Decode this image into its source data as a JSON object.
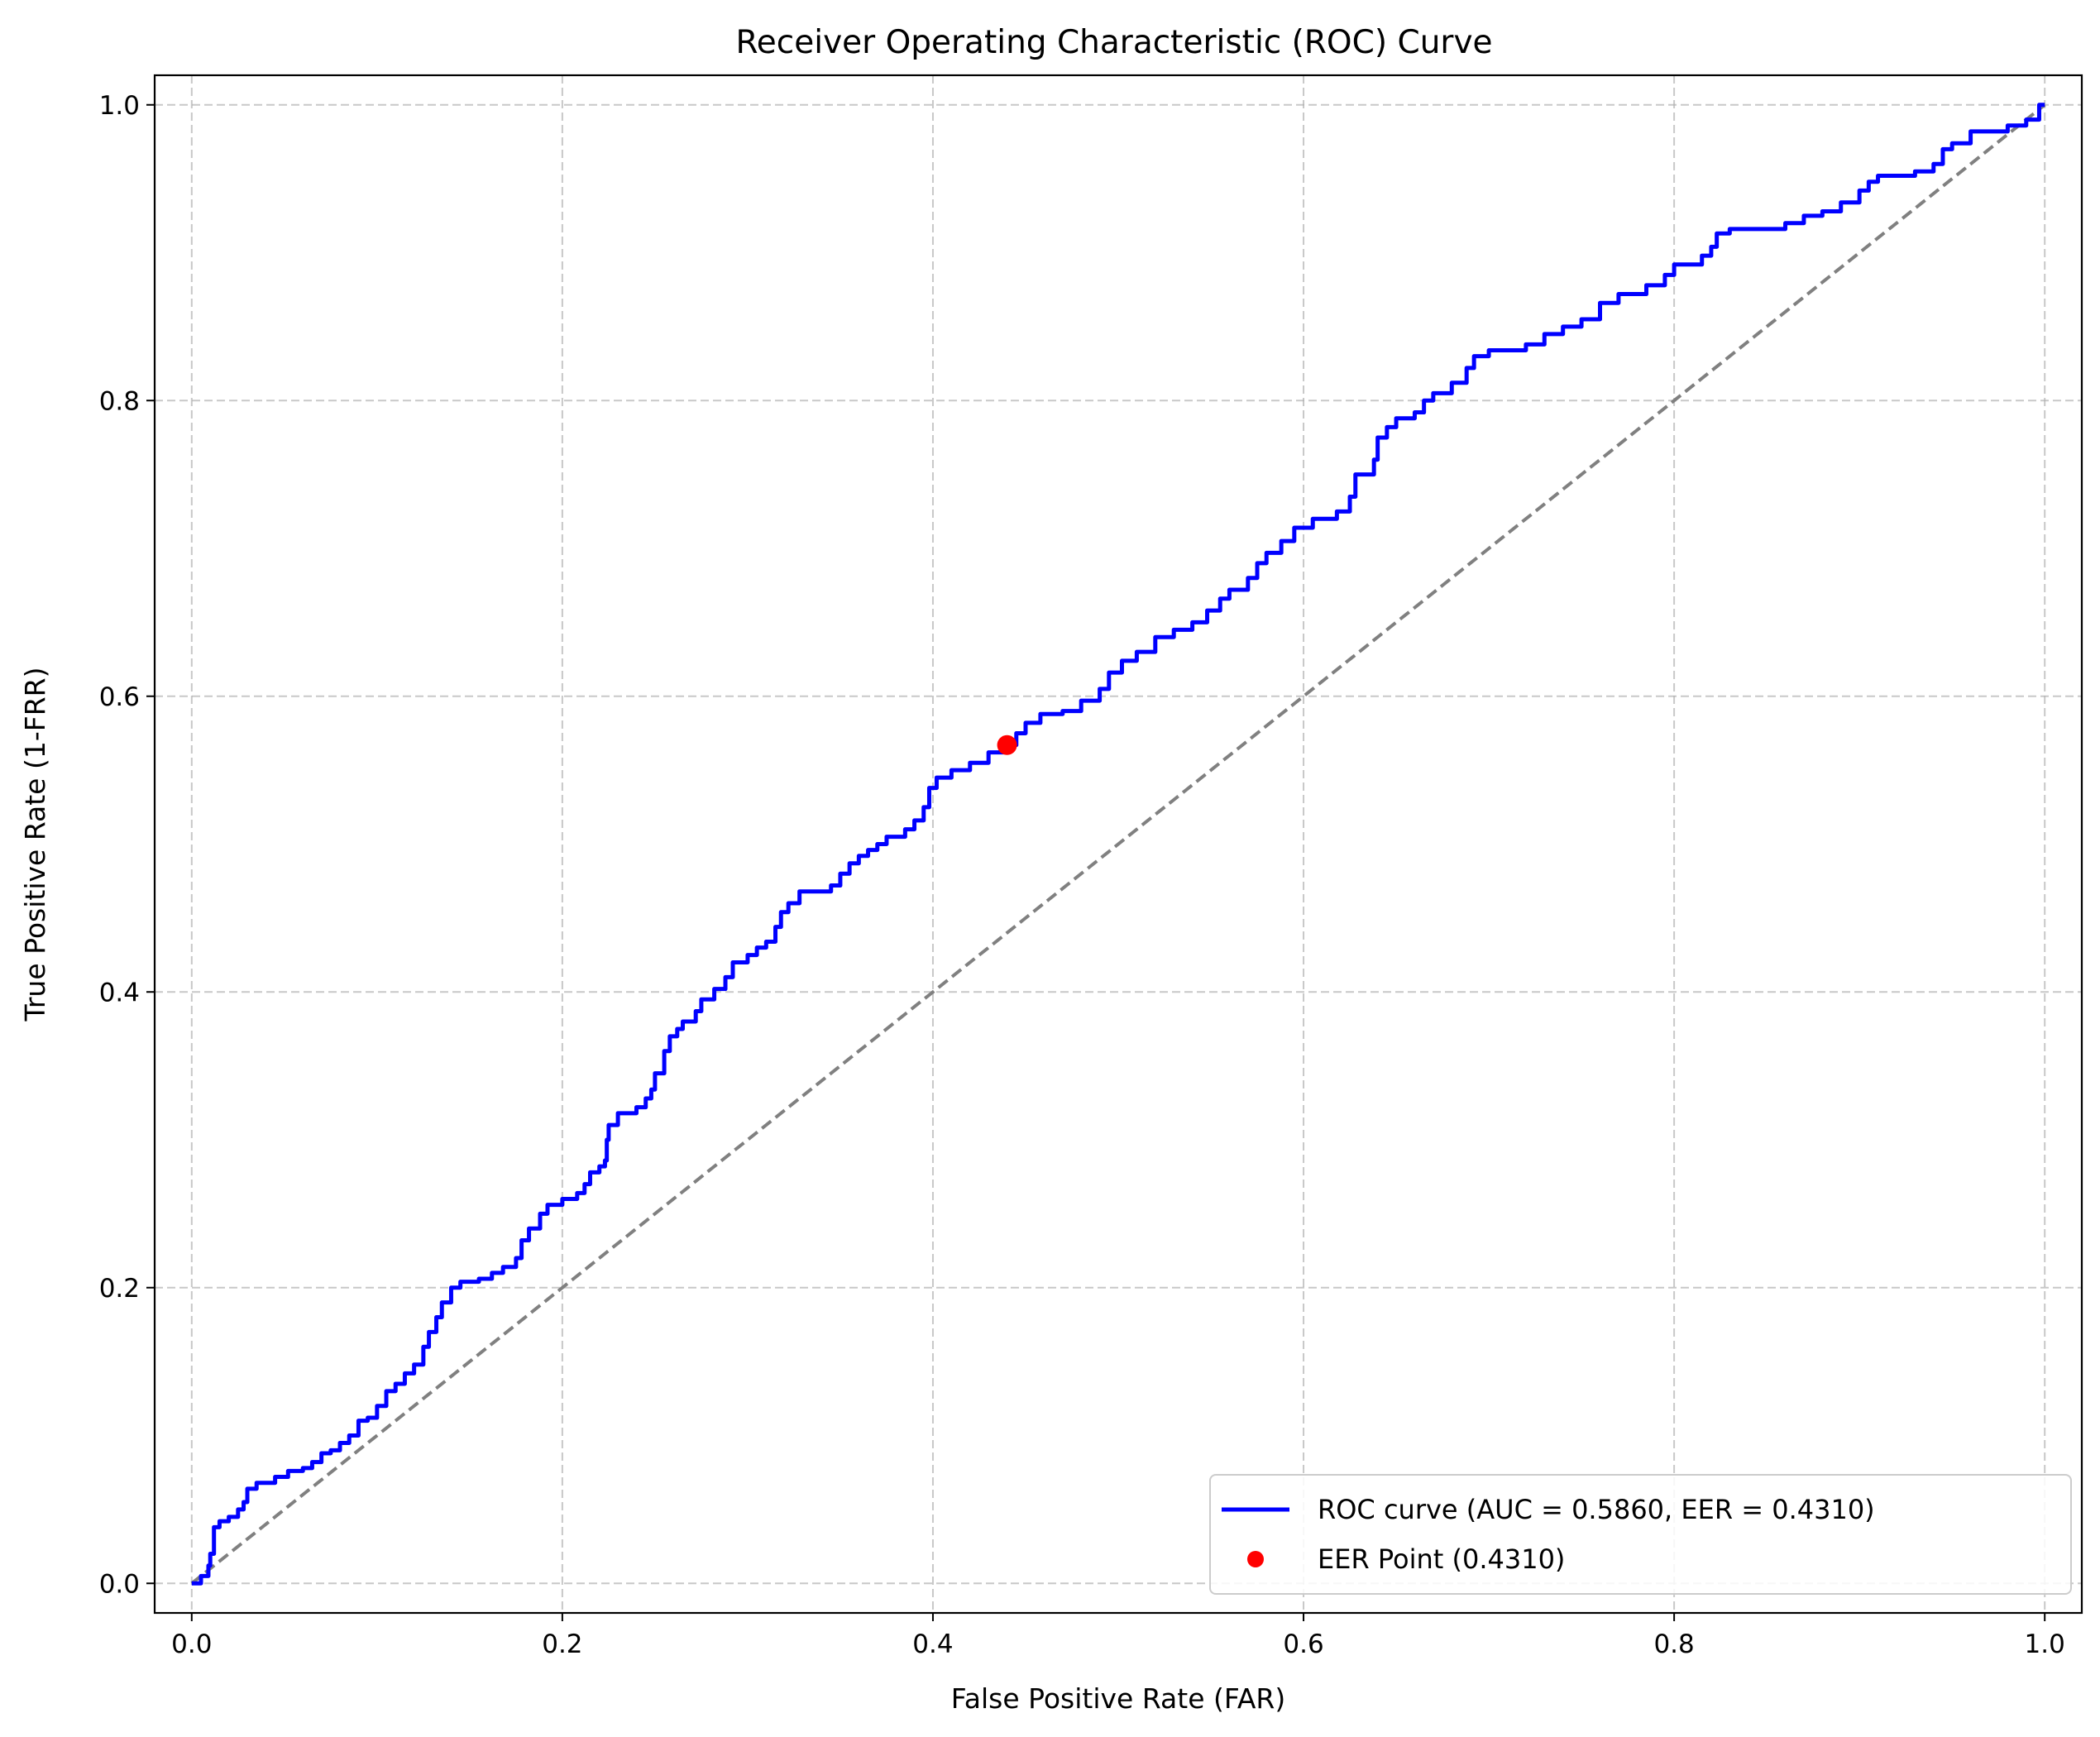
{
  "chart_data": {
    "type": "line",
    "title": "Receiver Operating Characteristic (ROC) Curve",
    "xlabel": "False Positive Rate (FAR)",
    "ylabel": "True Positive Rate (1-FRR)",
    "xlim": [
      -0.02,
      1.02
    ],
    "ylim": [
      -0.02,
      1.02
    ],
    "xticks": [
      0.0,
      0.2,
      0.4,
      0.6,
      0.8,
      1.0
    ],
    "yticks": [
      0.0,
      0.2,
      0.4,
      0.6,
      0.8,
      1.0
    ],
    "xtick_labels": [
      "0.0",
      "0.2",
      "0.4",
      "0.6",
      "0.8",
      "1.0"
    ],
    "ytick_labels": [
      "0.0",
      "0.2",
      "0.4",
      "0.6",
      "0.8",
      "1.0"
    ],
    "grid": true,
    "legend_position": "lower-right",
    "series": [
      {
        "name": "ROC curve (AUC = 0.5860, EER = 0.4310)",
        "color": "#0000ff",
        "style": "solid",
        "points": [
          [
            0.0,
            0.0
          ],
          [
            0.005,
            0.005
          ],
          [
            0.009,
            0.012
          ],
          [
            0.01,
            0.02
          ],
          [
            0.012,
            0.038
          ],
          [
            0.015,
            0.042
          ],
          [
            0.02,
            0.045
          ],
          [
            0.025,
            0.05
          ],
          [
            0.028,
            0.055
          ],
          [
            0.03,
            0.064
          ],
          [
            0.035,
            0.068
          ],
          [
            0.045,
            0.072
          ],
          [
            0.052,
            0.076
          ],
          [
            0.06,
            0.078
          ],
          [
            0.065,
            0.082
          ],
          [
            0.07,
            0.088
          ],
          [
            0.075,
            0.09
          ],
          [
            0.08,
            0.095
          ],
          [
            0.085,
            0.1
          ],
          [
            0.09,
            0.11
          ],
          [
            0.095,
            0.112
          ],
          [
            0.1,
            0.12
          ],
          [
            0.105,
            0.13
          ],
          [
            0.11,
            0.135
          ],
          [
            0.115,
            0.142
          ],
          [
            0.12,
            0.148
          ],
          [
            0.125,
            0.16
          ],
          [
            0.128,
            0.17
          ],
          [
            0.132,
            0.18
          ],
          [
            0.135,
            0.19
          ],
          [
            0.14,
            0.2
          ],
          [
            0.145,
            0.204
          ],
          [
            0.155,
            0.206
          ],
          [
            0.162,
            0.21
          ],
          [
            0.168,
            0.214
          ],
          [
            0.175,
            0.22
          ],
          [
            0.178,
            0.232
          ],
          [
            0.182,
            0.24
          ],
          [
            0.188,
            0.25
          ],
          [
            0.192,
            0.256
          ],
          [
            0.2,
            0.26
          ],
          [
            0.208,
            0.264
          ],
          [
            0.212,
            0.27
          ],
          [
            0.215,
            0.278
          ],
          [
            0.22,
            0.282
          ],
          [
            0.223,
            0.286
          ],
          [
            0.224,
            0.3
          ],
          [
            0.225,
            0.31
          ],
          [
            0.23,
            0.318
          ],
          [
            0.24,
            0.322
          ],
          [
            0.245,
            0.328
          ],
          [
            0.248,
            0.334
          ],
          [
            0.25,
            0.345
          ],
          [
            0.255,
            0.36
          ],
          [
            0.258,
            0.37
          ],
          [
            0.262,
            0.375
          ],
          [
            0.265,
            0.38
          ],
          [
            0.272,
            0.387
          ],
          [
            0.275,
            0.395
          ],
          [
            0.282,
            0.402
          ],
          [
            0.288,
            0.41
          ],
          [
            0.292,
            0.42
          ],
          [
            0.3,
            0.425
          ],
          [
            0.305,
            0.43
          ],
          [
            0.31,
            0.434
          ],
          [
            0.315,
            0.444
          ],
          [
            0.318,
            0.454
          ],
          [
            0.322,
            0.46
          ],
          [
            0.328,
            0.468
          ],
          [
            0.345,
            0.472
          ],
          [
            0.35,
            0.48
          ],
          [
            0.355,
            0.487
          ],
          [
            0.36,
            0.492
          ],
          [
            0.365,
            0.496
          ],
          [
            0.37,
            0.5
          ],
          [
            0.375,
            0.505
          ],
          [
            0.385,
            0.51
          ],
          [
            0.39,
            0.516
          ],
          [
            0.395,
            0.525
          ],
          [
            0.398,
            0.538
          ],
          [
            0.402,
            0.545
          ],
          [
            0.41,
            0.55
          ],
          [
            0.42,
            0.555
          ],
          [
            0.43,
            0.562
          ],
          [
            0.44,
            0.567
          ],
          [
            0.445,
            0.575
          ],
          [
            0.45,
            0.582
          ],
          [
            0.458,
            0.588
          ],
          [
            0.47,
            0.59
          ],
          [
            0.48,
            0.597
          ],
          [
            0.49,
            0.605
          ],
          [
            0.495,
            0.616
          ],
          [
            0.502,
            0.624
          ],
          [
            0.51,
            0.63
          ],
          [
            0.52,
            0.64
          ],
          [
            0.53,
            0.645
          ],
          [
            0.54,
            0.65
          ],
          [
            0.548,
            0.658
          ],
          [
            0.555,
            0.666
          ],
          [
            0.56,
            0.672
          ],
          [
            0.57,
            0.68
          ],
          [
            0.575,
            0.69
          ],
          [
            0.58,
            0.697
          ],
          [
            0.588,
            0.705
          ],
          [
            0.595,
            0.714
          ],
          [
            0.605,
            0.72
          ],
          [
            0.618,
            0.725
          ],
          [
            0.625,
            0.735
          ],
          [
            0.628,
            0.75
          ],
          [
            0.638,
            0.76
          ],
          [
            0.64,
            0.775
          ],
          [
            0.645,
            0.782
          ],
          [
            0.65,
            0.788
          ],
          [
            0.66,
            0.792
          ],
          [
            0.665,
            0.8
          ],
          [
            0.67,
            0.805
          ],
          [
            0.68,
            0.812
          ],
          [
            0.688,
            0.822
          ],
          [
            0.692,
            0.83
          ],
          [
            0.7,
            0.834
          ],
          [
            0.72,
            0.838
          ],
          [
            0.73,
            0.845
          ],
          [
            0.74,
            0.85
          ],
          [
            0.75,
            0.855
          ],
          [
            0.76,
            0.866
          ],
          [
            0.77,
            0.872
          ],
          [
            0.785,
            0.878
          ],
          [
            0.795,
            0.885
          ],
          [
            0.8,
            0.892
          ],
          [
            0.815,
            0.898
          ],
          [
            0.82,
            0.904
          ],
          [
            0.823,
            0.913
          ],
          [
            0.83,
            0.916
          ],
          [
            0.86,
            0.92
          ],
          [
            0.87,
            0.925
          ],
          [
            0.88,
            0.928
          ],
          [
            0.89,
            0.934
          ],
          [
            0.9,
            0.942
          ],
          [
            0.905,
            0.948
          ],
          [
            0.91,
            0.952
          ],
          [
            0.93,
            0.955
          ],
          [
            0.94,
            0.96
          ],
          [
            0.945,
            0.97
          ],
          [
            0.95,
            0.974
          ],
          [
            0.96,
            0.982
          ],
          [
            0.98,
            0.986
          ],
          [
            0.99,
            0.99
          ],
          [
            0.997,
            1.0
          ],
          [
            1.0,
            1.0
          ]
        ]
      },
      {
        "name": "",
        "color": "#808080",
        "style": "dashed",
        "points": [
          [
            0.0,
            0.0
          ],
          [
            1.0,
            1.0
          ]
        ]
      }
    ],
    "markers": [
      {
        "name": "EER Point (0.4310)",
        "color": "#ff0000",
        "x": 0.44,
        "y": 0.567
      }
    ]
  }
}
